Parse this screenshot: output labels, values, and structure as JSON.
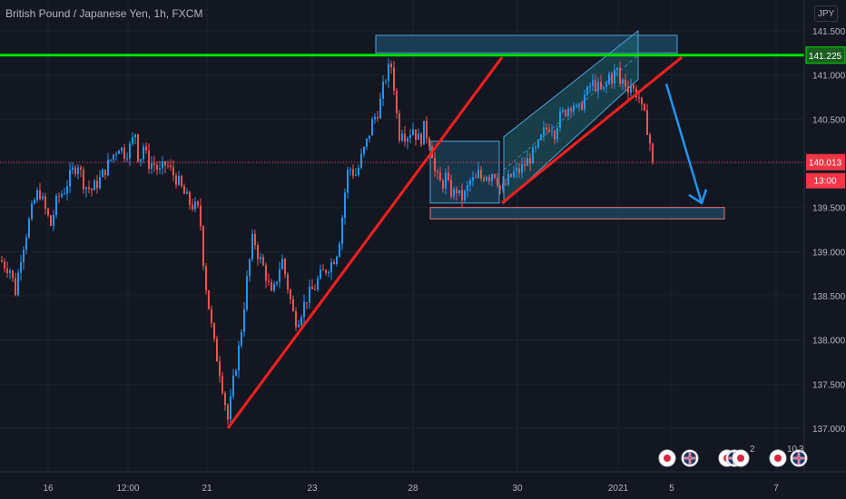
{
  "header": {
    "title": "British Pound / Japanese Yen, 1h, FXCM",
    "currency": "JPY"
  },
  "colors": {
    "background": "#131722",
    "up_candle": "#2196f3",
    "down_candle": "#ef5350",
    "green_line": "#00e000",
    "trend_line": "#ff1f1f",
    "box_fill": "#1e4a66",
    "box_stroke": "#4fa3d9",
    "arrow": "#2196f3",
    "price_tag": "#f23645"
  },
  "chart_data": {
    "type": "candlestick",
    "title": "British Pound / Japanese Yen, 1h, FXCM",
    "currency": "JPY",
    "y_ticks": [
      "141.500",
      "141.000",
      "140.500",
      "140.000",
      "139.500",
      "139.000",
      "138.500",
      "138.000",
      "137.500",
      "137.000"
    ],
    "ylim": [
      136.9,
      141.65
    ],
    "x_ticks": [
      "16",
      "12:00",
      "21",
      "23",
      "28",
      "30",
      "2021",
      "5",
      "7"
    ],
    "resistance_label": "141.225",
    "last_price_label": "140.013",
    "countdown_label": "13:00",
    "path": [
      [
        0,
        138.9
      ],
      [
        4,
        138.85
      ],
      [
        10,
        138.8
      ],
      [
        16,
        138.55
      ],
      [
        22,
        138.95
      ],
      [
        30,
        139.3
      ],
      [
        36,
        139.55
      ],
      [
        42,
        139.7
      ],
      [
        48,
        139.5
      ],
      [
        55,
        139.3
      ],
      [
        62,
        139.6
      ],
      [
        70,
        139.7
      ],
      [
        78,
        139.9
      ],
      [
        85,
        140.0
      ],
      [
        92,
        139.75
      ],
      [
        100,
        139.7
      ],
      [
        108,
        139.8
      ],
      [
        116,
        139.95
      ],
      [
        124,
        140.1
      ],
      [
        130,
        140.2
      ],
      [
        137,
        140.1
      ],
      [
        143,
        140.2
      ],
      [
        148,
        140.35
      ],
      [
        152,
        140.0
      ],
      [
        157,
        140.2
      ],
      [
        162,
        140.0
      ],
      [
        168,
        140.0
      ],
      [
        175,
        139.9
      ],
      [
        182,
        140.0
      ],
      [
        188,
        139.9
      ],
      [
        195,
        139.8
      ],
      [
        202,
        139.65
      ],
      [
        208,
        139.55
      ],
      [
        214,
        139.5
      ],
      [
        219,
        139.45
      ],
      [
        222,
        139.0
      ],
      [
        226,
        138.6
      ],
      [
        230,
        138.3
      ],
      [
        234,
        138.0
      ],
      [
        238,
        137.8
      ],
      [
        242,
        137.6
      ],
      [
        246,
        137.35
      ],
      [
        250,
        137.1
      ],
      [
        253,
        137.3
      ],
      [
        257,
        137.6
      ],
      [
        262,
        137.9
      ],
      [
        266,
        138.2
      ],
      [
        270,
        138.6
      ],
      [
        274,
        138.9
      ],
      [
        278,
        139.2
      ],
      [
        282,
        139.0
      ],
      [
        286,
        138.9
      ],
      [
        290,
        138.8
      ],
      [
        294,
        138.65
      ],
      [
        298,
        138.5
      ],
      [
        302,
        138.6
      ],
      [
        306,
        138.8
      ],
      [
        310,
        138.9
      ],
      [
        314,
        138.7
      ],
      [
        318,
        138.5
      ],
      [
        322,
        138.3
      ],
      [
        326,
        138.2
      ],
      [
        330,
        138.3
      ],
      [
        334,
        138.4
      ],
      [
        338,
        138.5
      ],
      [
        342,
        138.55
      ],
      [
        346,
        138.6
      ],
      [
        350,
        138.7
      ],
      [
        354,
        138.75
      ],
      [
        358,
        138.8
      ],
      [
        362,
        138.85
      ],
      [
        366,
        138.9
      ],
      [
        370,
        139.0
      ],
      [
        374,
        139.2
      ],
      [
        378,
        139.6
      ],
      [
        382,
        139.9
      ],
      [
        386,
        139.95
      ],
      [
        390,
        139.85
      ],
      [
        394,
        139.95
      ],
      [
        398,
        140.1
      ],
      [
        402,
        140.2
      ],
      [
        406,
        140.35
      ],
      [
        410,
        140.5
      ],
      [
        414,
        140.55
      ],
      [
        418,
        140.7
      ],
      [
        422,
        140.9
      ],
      [
        426,
        141.05
      ],
      [
        430,
        141.1
      ],
      [
        434,
        140.8
      ],
      [
        438,
        140.3
      ],
      [
        442,
        140.4
      ],
      [
        446,
        140.3
      ],
      [
        450,
        140.35
      ],
      [
        454,
        140.4
      ],
      [
        458,
        140.3
      ],
      [
        462,
        140.25
      ],
      [
        466,
        140.4
      ],
      [
        470,
        140.3
      ],
      [
        474,
        140.2
      ],
      [
        478,
        139.9
      ],
      [
        482,
        139.8
      ],
      [
        486,
        139.75
      ],
      [
        490,
        139.85
      ],
      [
        494,
        139.7
      ],
      [
        498,
        139.65
      ],
      [
        502,
        139.7
      ],
      [
        506,
        139.6
      ],
      [
        510,
        139.62
      ],
      [
        514,
        139.72
      ],
      [
        518,
        139.82
      ],
      [
        522,
        139.78
      ],
      [
        526,
        139.88
      ],
      [
        530,
        139.82
      ],
      [
        534,
        139.9
      ],
      [
        538,
        139.85
      ],
      [
        542,
        139.92
      ],
      [
        546,
        139.85
      ],
      [
        550,
        139.7
      ],
      [
        554,
        139.72
      ],
      [
        558,
        139.8
      ],
      [
        562,
        139.85
      ],
      [
        566,
        139.9
      ],
      [
        570,
        139.9
      ],
      [
        574,
        139.95
      ],
      [
        578,
        140.0
      ],
      [
        582,
        140.05
      ],
      [
        586,
        140.1
      ],
      [
        590,
        140.15
      ],
      [
        594,
        140.25
      ],
      [
        598,
        140.35
      ],
      [
        602,
        140.4
      ],
      [
        606,
        140.45
      ],
      [
        610,
        140.35
      ],
      [
        614,
        140.5
      ],
      [
        618,
        140.55
      ],
      [
        622,
        140.6
      ],
      [
        626,
        140.65
      ],
      [
        630,
        140.7
      ],
      [
        634,
        140.6
      ],
      [
        638,
        140.6
      ],
      [
        642,
        140.75
      ],
      [
        646,
        140.8
      ],
      [
        650,
        140.9
      ],
      [
        654,
        140.9
      ],
      [
        658,
        140.85
      ],
      [
        662,
        140.8
      ],
      [
        666,
        140.85
      ],
      [
        670,
        141.0
      ],
      [
        674,
        140.95
      ],
      [
        678,
        141.1
      ],
      [
        682,
        140.9
      ],
      [
        686,
        140.95
      ],
      [
        690,
        140.85
      ],
      [
        694,
        140.9
      ],
      [
        698,
        140.8
      ],
      [
        702,
        140.8
      ],
      [
        706,
        140.6
      ],
      [
        710,
        140.5
      ],
      [
        714,
        140.3
      ],
      [
        718,
        140.013
      ]
    ],
    "annotations": {
      "resistance_price": 141.225,
      "resistance_zone": {
        "x_from": 414,
        "x_to": 746,
        "price_low": 141.25,
        "price_high": 141.45
      },
      "support_zone": {
        "x_from": 474,
        "x_to": 798,
        "price_low": 139.37,
        "price_high": 139.5
      },
      "consolidation_box": {
        "x_from": 474,
        "x_to": 550,
        "price_low": 139.55,
        "price_high": 140.25
      },
      "rising_channel": {
        "x_from": 555,
        "x_to": 703,
        "bottom_start": 139.55,
        "bottom_end": 140.95,
        "top_start": 140.3,
        "top_end": 141.5
      },
      "trend_line_long": {
        "x_from": 251,
        "x_to": 553,
        "price_from": 137.0,
        "price_to": 141.2
      },
      "trend_line_channel": {
        "x_from": 553,
        "x_to": 751,
        "price_from": 139.55,
        "price_to": 141.2
      },
      "forecast_arrow": {
        "x_from": 734,
        "x_to": 773,
        "price_from": 140.9,
        "price_to": 139.55
      }
    }
  },
  "bottom_icons": {
    "badge_1": "2",
    "badge_2": "10",
    "badge_3": "3"
  }
}
